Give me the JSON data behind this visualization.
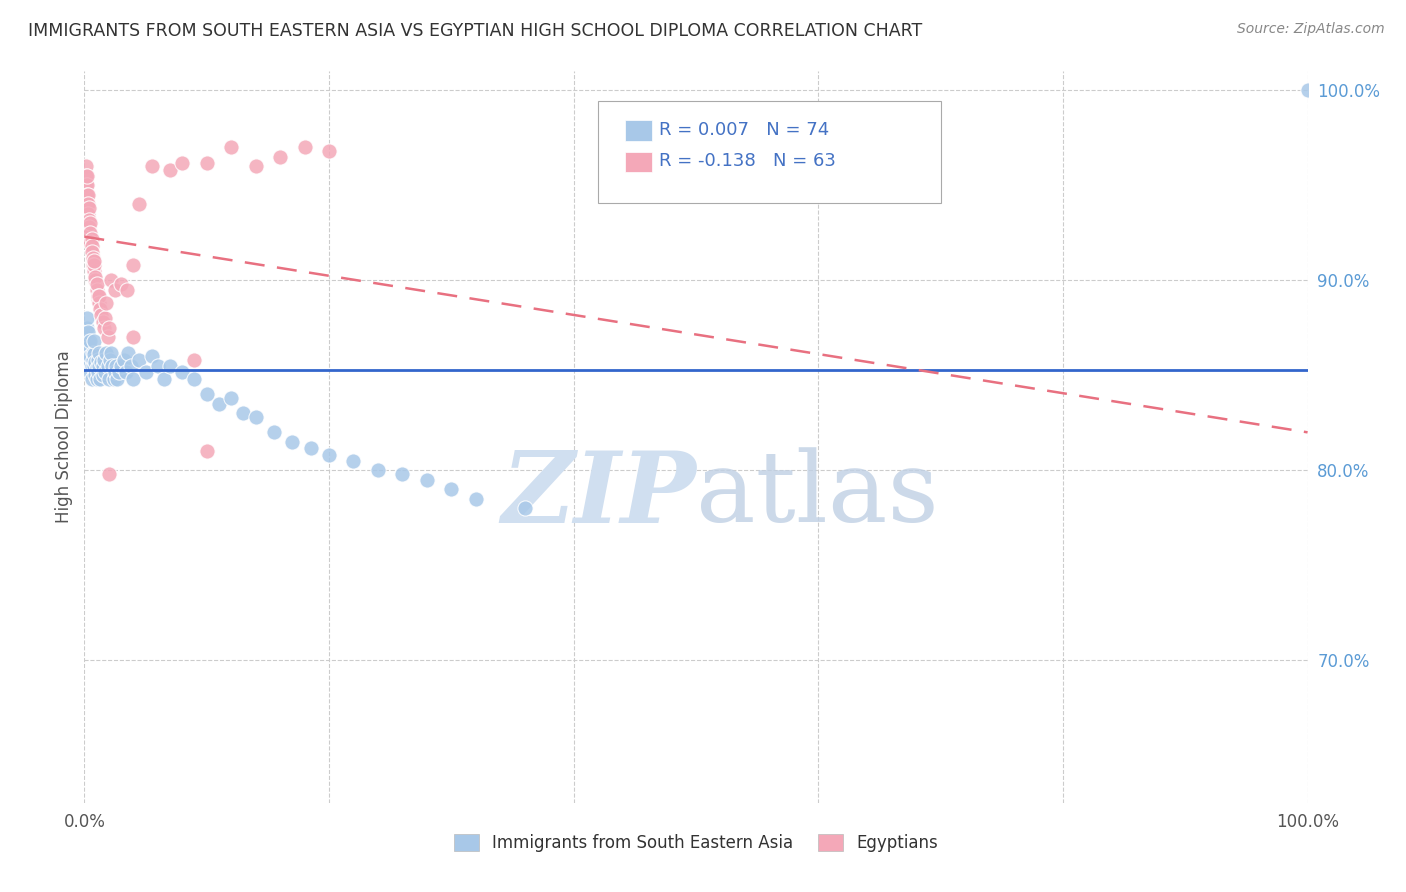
{
  "title": "IMMIGRANTS FROM SOUTH EASTERN ASIA VS EGYPTIAN HIGH SCHOOL DIPLOMA CORRELATION CHART",
  "source": "Source: ZipAtlas.com",
  "ylabel": "High School Diploma",
  "legend_blue_r": "R = 0.007",
  "legend_blue_n": "N = 74",
  "legend_pink_r": "R = -0.138",
  "legend_pink_n": "N = 63",
  "legend_blue_label": "Immigrants from South Eastern Asia",
  "legend_pink_label": "Egyptians",
  "blue_color": "#a8c8e8",
  "pink_color": "#f4a8b8",
  "trendline_blue_color": "#3366cc",
  "trendline_pink_color": "#e87080",
  "watermark_color": "#d0dff0",
  "background_color": "#ffffff",
  "grid_color": "#cccccc",
  "blue_scatter_x": [
    0.001,
    0.002,
    0.002,
    0.003,
    0.003,
    0.003,
    0.004,
    0.004,
    0.005,
    0.005,
    0.005,
    0.006,
    0.006,
    0.007,
    0.007,
    0.008,
    0.008,
    0.008,
    0.009,
    0.009,
    0.01,
    0.01,
    0.011,
    0.011,
    0.012,
    0.012,
    0.013,
    0.014,
    0.015,
    0.015,
    0.016,
    0.017,
    0.018,
    0.019,
    0.02,
    0.021,
    0.022,
    0.023,
    0.024,
    0.025,
    0.026,
    0.027,
    0.028,
    0.03,
    0.032,
    0.034,
    0.036,
    0.038,
    0.04,
    0.045,
    0.05,
    0.055,
    0.06,
    0.065,
    0.07,
    0.08,
    0.09,
    0.1,
    0.11,
    0.12,
    0.13,
    0.14,
    0.155,
    0.17,
    0.185,
    0.2,
    0.22,
    0.24,
    0.26,
    0.28,
    0.3,
    0.32,
    0.36,
    1.0
  ],
  "blue_scatter_y": [
    0.87,
    0.875,
    0.88,
    0.862,
    0.868,
    0.873,
    0.858,
    0.865,
    0.852,
    0.86,
    0.868,
    0.848,
    0.855,
    0.862,
    0.858,
    0.855,
    0.861,
    0.868,
    0.85,
    0.857,
    0.848,
    0.854,
    0.852,
    0.858,
    0.855,
    0.862,
    0.848,
    0.857,
    0.85,
    0.855,
    0.858,
    0.852,
    0.862,
    0.855,
    0.848,
    0.858,
    0.862,
    0.855,
    0.848,
    0.852,
    0.855,
    0.848,
    0.852,
    0.855,
    0.858,
    0.852,
    0.862,
    0.855,
    0.848,
    0.858,
    0.852,
    0.86,
    0.855,
    0.848,
    0.855,
    0.852,
    0.848,
    0.84,
    0.835,
    0.838,
    0.83,
    0.828,
    0.82,
    0.815,
    0.812,
    0.808,
    0.805,
    0.8,
    0.798,
    0.795,
    0.79,
    0.785,
    0.78,
    1.0
  ],
  "pink_scatter_x": [
    0.001,
    0.001,
    0.001,
    0.001,
    0.002,
    0.002,
    0.002,
    0.002,
    0.002,
    0.003,
    0.003,
    0.003,
    0.003,
    0.004,
    0.004,
    0.004,
    0.005,
    0.005,
    0.005,
    0.006,
    0.006,
    0.006,
    0.007,
    0.007,
    0.007,
    0.008,
    0.008,
    0.008,
    0.009,
    0.009,
    0.01,
    0.01,
    0.011,
    0.011,
    0.012,
    0.012,
    0.013,
    0.014,
    0.015,
    0.016,
    0.017,
    0.018,
    0.019,
    0.02,
    0.022,
    0.025,
    0.03,
    0.035,
    0.04,
    0.045,
    0.055,
    0.07,
    0.08,
    0.09,
    0.1,
    0.12,
    0.14,
    0.16,
    0.18,
    0.2,
    0.1,
    0.02,
    0.04
  ],
  "pink_scatter_y": [
    0.96,
    0.955,
    0.95,
    0.945,
    0.95,
    0.945,
    0.94,
    0.935,
    0.955,
    0.945,
    0.94,
    0.935,
    0.93,
    0.938,
    0.932,
    0.928,
    0.93,
    0.925,
    0.92,
    0.922,
    0.918,
    0.915,
    0.91,
    0.912,
    0.908,
    0.905,
    0.908,
    0.91,
    0.9,
    0.902,
    0.895,
    0.898,
    0.89,
    0.892,
    0.888,
    0.892,
    0.885,
    0.882,
    0.878,
    0.875,
    0.88,
    0.888,
    0.87,
    0.875,
    0.9,
    0.895,
    0.898,
    0.895,
    0.87,
    0.94,
    0.96,
    0.958,
    0.962,
    0.858,
    0.962,
    0.97,
    0.96,
    0.965,
    0.97,
    0.968,
    0.81,
    0.798,
    0.908
  ],
  "xlim": [
    0.0,
    1.0
  ],
  "ylim": [
    0.625,
    1.01
  ],
  "yticks": [
    0.7,
    0.8,
    0.9,
    1.0
  ],
  "ytick_labels": [
    "70.0%",
    "80.0%",
    "90.0%",
    "100.0%"
  ],
  "xticks": [
    0.0,
    0.2,
    0.4,
    0.6,
    0.8,
    1.0
  ],
  "xtick_labels": [
    "0.0%",
    "",
    "",
    "",
    "",
    "100.0%"
  ],
  "blue_trend_y0": 0.853,
  "blue_trend_y1": 0.853,
  "pink_trend_y0": 0.923,
  "pink_trend_y1": 0.82
}
